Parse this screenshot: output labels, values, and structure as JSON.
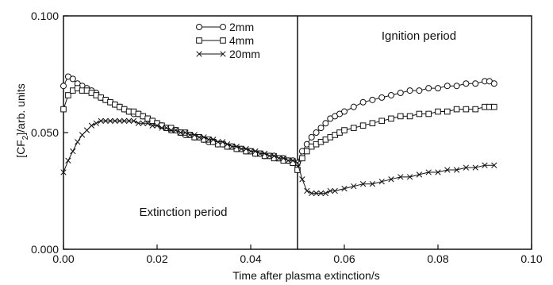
{
  "chart_data": {
    "type": "line",
    "xlabel": "Time after plasma extinction/s",
    "ylabel_main": "[CF",
    "ylabel_sub": "2",
    "ylabel_tail": "]/arb. units",
    "xlim": [
      0.0,
      0.1
    ],
    "ylim": [
      0.0,
      0.1
    ],
    "x_ticks": [
      {
        "value": 0.0,
        "label": "0.00"
      },
      {
        "value": 0.02,
        "label": "0.02"
      },
      {
        "value": 0.04,
        "label": "0.04"
      },
      {
        "value": 0.06,
        "label": "0.06"
      },
      {
        "value": 0.08,
        "label": "0.08"
      },
      {
        "value": 0.1,
        "label": "0.10"
      }
    ],
    "y_ticks": [
      {
        "value": 0.0,
        "label": "0.000"
      },
      {
        "value": 0.05,
        "label": "0.050"
      },
      {
        "value": 0.1,
        "label": "0.100"
      }
    ],
    "divider_x": 0.05,
    "annotations": {
      "extinction": "Extinction period",
      "ignition": "Ignition period"
    },
    "legend_position": "top-center",
    "series": [
      {
        "name": "2mm",
        "marker": "circle",
        "x": [
          0.0,
          0.001,
          0.002,
          0.003,
          0.004,
          0.005,
          0.006,
          0.007,
          0.008,
          0.009,
          0.01,
          0.011,
          0.012,
          0.013,
          0.014,
          0.015,
          0.016,
          0.017,
          0.018,
          0.019,
          0.02,
          0.021,
          0.022,
          0.023,
          0.024,
          0.025,
          0.026,
          0.027,
          0.028,
          0.029,
          0.03,
          0.031,
          0.032,
          0.033,
          0.034,
          0.035,
          0.036,
          0.037,
          0.038,
          0.039,
          0.04,
          0.041,
          0.042,
          0.043,
          0.044,
          0.045,
          0.046,
          0.047,
          0.048,
          0.049,
          0.05,
          0.051,
          0.052,
          0.053,
          0.054,
          0.055,
          0.056,
          0.057,
          0.058,
          0.059,
          0.06,
          0.062,
          0.064,
          0.066,
          0.068,
          0.07,
          0.072,
          0.074,
          0.076,
          0.078,
          0.08,
          0.082,
          0.084,
          0.086,
          0.088,
          0.09,
          0.091,
          0.092
        ],
        "y": [
          0.07,
          0.074,
          0.073,
          0.071,
          0.07,
          0.069,
          0.068,
          0.067,
          0.065,
          0.064,
          0.063,
          0.062,
          0.061,
          0.06,
          0.059,
          0.058,
          0.058,
          0.057,
          0.056,
          0.055,
          0.054,
          0.053,
          0.052,
          0.051,
          0.051,
          0.05,
          0.049,
          0.049,
          0.048,
          0.048,
          0.047,
          0.046,
          0.046,
          0.045,
          0.045,
          0.044,
          0.044,
          0.043,
          0.043,
          0.042,
          0.042,
          0.041,
          0.041,
          0.04,
          0.04,
          0.04,
          0.039,
          0.039,
          0.038,
          0.038,
          0.037,
          0.042,
          0.045,
          0.048,
          0.05,
          0.052,
          0.054,
          0.056,
          0.057,
          0.058,
          0.059,
          0.061,
          0.063,
          0.064,
          0.065,
          0.066,
          0.067,
          0.068,
          0.068,
          0.069,
          0.069,
          0.07,
          0.07,
          0.071,
          0.071,
          0.072,
          0.072,
          0.071
        ]
      },
      {
        "name": "4mm",
        "marker": "square",
        "x": [
          0.0,
          0.001,
          0.002,
          0.003,
          0.004,
          0.005,
          0.006,
          0.007,
          0.008,
          0.009,
          0.01,
          0.011,
          0.012,
          0.013,
          0.014,
          0.015,
          0.016,
          0.017,
          0.018,
          0.019,
          0.02,
          0.021,
          0.022,
          0.023,
          0.024,
          0.025,
          0.026,
          0.027,
          0.028,
          0.029,
          0.03,
          0.031,
          0.032,
          0.033,
          0.034,
          0.035,
          0.036,
          0.037,
          0.038,
          0.039,
          0.04,
          0.041,
          0.042,
          0.043,
          0.044,
          0.045,
          0.046,
          0.047,
          0.048,
          0.049,
          0.05,
          0.051,
          0.052,
          0.053,
          0.054,
          0.055,
          0.056,
          0.057,
          0.058,
          0.059,
          0.06,
          0.062,
          0.064,
          0.066,
          0.068,
          0.07,
          0.072,
          0.074,
          0.076,
          0.078,
          0.08,
          0.082,
          0.084,
          0.086,
          0.088,
          0.09,
          0.091,
          0.092
        ],
        "y": [
          0.06,
          0.066,
          0.068,
          0.069,
          0.068,
          0.068,
          0.067,
          0.066,
          0.065,
          0.064,
          0.063,
          0.062,
          0.061,
          0.06,
          0.059,
          0.059,
          0.058,
          0.057,
          0.056,
          0.055,
          0.054,
          0.053,
          0.052,
          0.052,
          0.051,
          0.05,
          0.05,
          0.049,
          0.048,
          0.048,
          0.047,
          0.047,
          0.046,
          0.045,
          0.045,
          0.044,
          0.044,
          0.043,
          0.043,
          0.042,
          0.042,
          0.041,
          0.041,
          0.04,
          0.04,
          0.039,
          0.039,
          0.038,
          0.038,
          0.037,
          0.034,
          0.039,
          0.042,
          0.044,
          0.045,
          0.046,
          0.047,
          0.048,
          0.049,
          0.05,
          0.051,
          0.052,
          0.053,
          0.054,
          0.055,
          0.056,
          0.057,
          0.057,
          0.058,
          0.058,
          0.059,
          0.059,
          0.06,
          0.06,
          0.06,
          0.061,
          0.061,
          0.061
        ]
      },
      {
        "name": "20mm",
        "marker": "cross",
        "x": [
          0.0,
          0.001,
          0.002,
          0.003,
          0.004,
          0.005,
          0.006,
          0.007,
          0.008,
          0.009,
          0.01,
          0.011,
          0.012,
          0.013,
          0.014,
          0.015,
          0.016,
          0.017,
          0.018,
          0.019,
          0.02,
          0.021,
          0.022,
          0.023,
          0.024,
          0.025,
          0.026,
          0.027,
          0.028,
          0.029,
          0.03,
          0.031,
          0.032,
          0.033,
          0.034,
          0.035,
          0.036,
          0.037,
          0.038,
          0.039,
          0.04,
          0.041,
          0.042,
          0.043,
          0.044,
          0.045,
          0.046,
          0.047,
          0.048,
          0.049,
          0.05,
          0.051,
          0.052,
          0.053,
          0.054,
          0.055,
          0.056,
          0.057,
          0.058,
          0.06,
          0.062,
          0.064,
          0.066,
          0.068,
          0.07,
          0.072,
          0.074,
          0.076,
          0.078,
          0.08,
          0.082,
          0.084,
          0.086,
          0.088,
          0.09,
          0.092
        ],
        "y": [
          0.033,
          0.038,
          0.042,
          0.046,
          0.049,
          0.051,
          0.053,
          0.054,
          0.055,
          0.055,
          0.055,
          0.055,
          0.055,
          0.055,
          0.055,
          0.055,
          0.054,
          0.054,
          0.054,
          0.053,
          0.053,
          0.052,
          0.052,
          0.051,
          0.051,
          0.05,
          0.05,
          0.049,
          0.049,
          0.048,
          0.048,
          0.047,
          0.047,
          0.046,
          0.046,
          0.045,
          0.044,
          0.044,
          0.043,
          0.043,
          0.042,
          0.042,
          0.041,
          0.041,
          0.04,
          0.04,
          0.039,
          0.039,
          0.038,
          0.038,
          0.037,
          0.03,
          0.025,
          0.024,
          0.024,
          0.024,
          0.024,
          0.025,
          0.025,
          0.026,
          0.027,
          0.028,
          0.028,
          0.029,
          0.03,
          0.031,
          0.031,
          0.032,
          0.033,
          0.033,
          0.034,
          0.034,
          0.035,
          0.035,
          0.036,
          0.036
        ]
      }
    ]
  }
}
